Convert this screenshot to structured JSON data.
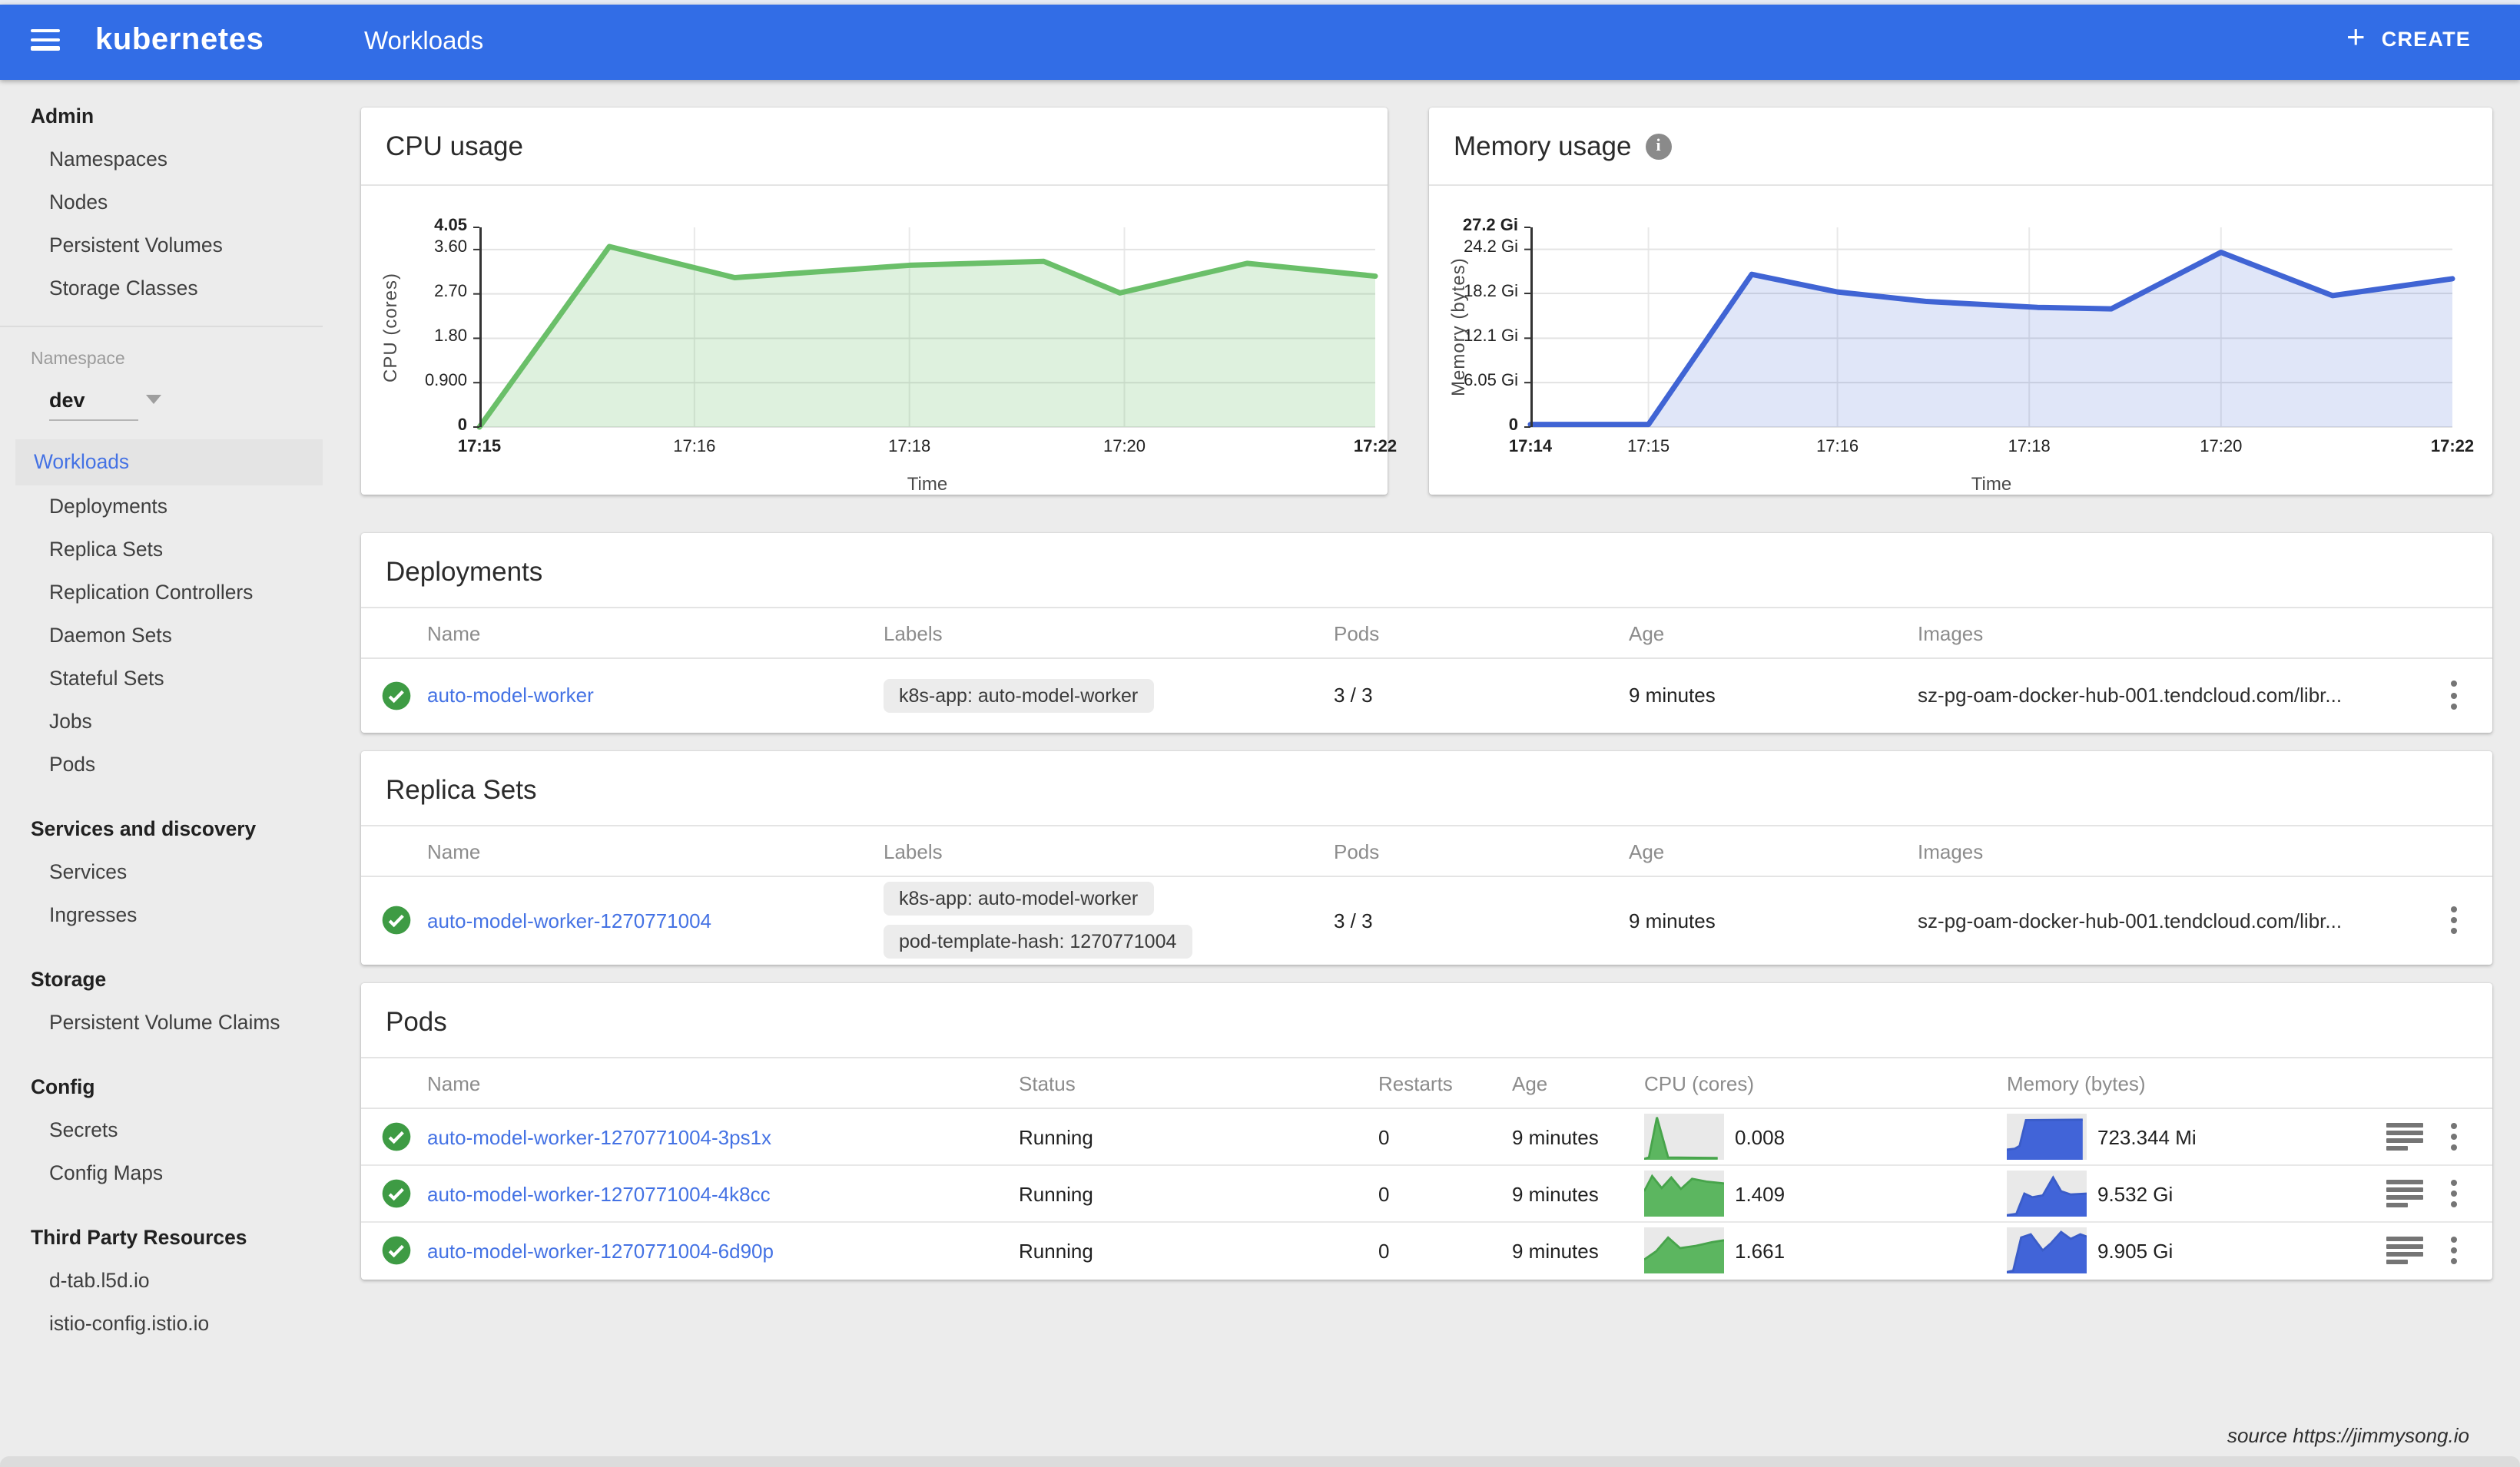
{
  "header": {
    "app_title": "kubernetes",
    "page_title": "Workloads",
    "create_label": "CREATE"
  },
  "colors": {
    "header_blue": "#326de6",
    "link_blue": "#4472e4",
    "green": "#3e9b44",
    "spark_green": "#5cb660",
    "spark_green_line": "#47a44b",
    "spark_blue": "#4164d8",
    "spark_blue_line": "#3a5cc8"
  },
  "sidebar": {
    "admin_header": "Admin",
    "admin_items": [
      "Namespaces",
      "Nodes",
      "Persistent Volumes",
      "Storage Classes"
    ],
    "namespace_label": "Namespace",
    "namespace_value": "dev",
    "workloads_label": "Workloads",
    "workloads_items": [
      "Deployments",
      "Replica Sets",
      "Replication Controllers",
      "Daemon Sets",
      "Stateful Sets",
      "Jobs",
      "Pods"
    ],
    "services_header": "Services and discovery",
    "services_items": [
      "Services",
      "Ingresses"
    ],
    "storage_header": "Storage",
    "storage_items": [
      "Persistent Volume Claims"
    ],
    "config_header": "Config",
    "config_items": [
      "Secrets",
      "Config Maps"
    ],
    "tpr_header": "Third Party Resources",
    "tpr_items": [
      "d-tab.l5d.io",
      "istio-config.istio.io"
    ]
  },
  "chart_data": [
    {
      "id": "cpu",
      "type": "area",
      "title": "CPU usage",
      "ylabel": "CPU (cores)",
      "xlabel": "Time",
      "ymax": 4.05,
      "ylim": [
        0,
        4.05
      ],
      "grid": true,
      "yticks": [
        {
          "v": 0,
          "label": "0",
          "bold": true
        },
        {
          "v": 0.9,
          "label": "0.900"
        },
        {
          "v": 1.8,
          "label": "1.80"
        },
        {
          "v": 2.7,
          "label": "2.70"
        },
        {
          "v": 3.6,
          "label": "3.60"
        },
        {
          "v": 4.05,
          "label": "4.05",
          "bold": true
        }
      ],
      "xticks": [
        {
          "f": 0,
          "label": "17:15",
          "bold": true
        },
        {
          "f": 0.24,
          "label": "17:16"
        },
        {
          "f": 0.48,
          "label": "17:18"
        },
        {
          "f": 0.72,
          "label": "17:20"
        },
        {
          "f": 1,
          "label": "17:22",
          "bold": true
        }
      ],
      "points": [
        [
          0,
          0
        ],
        [
          0.145,
          3.66
        ],
        [
          0.285,
          3.03
        ],
        [
          0.48,
          3.28
        ],
        [
          0.63,
          3.36
        ],
        [
          0.715,
          2.72
        ],
        [
          0.857,
          3.32
        ],
        [
          1,
          3.06
        ]
      ],
      "line_color": "#6abf69",
      "fill_color": "rgba(106,191,105,0.22)"
    },
    {
      "id": "memory",
      "type": "area",
      "title": "Memory usage",
      "ylabel": "Memory (bytes)",
      "xlabel": "Time",
      "ymax": 27.2,
      "ylim": [
        0,
        27.2
      ],
      "grid": true,
      "yticks": [
        {
          "v": 0,
          "label": "0",
          "bold": true
        },
        {
          "v": 6.05,
          "label": "6.05 Gi"
        },
        {
          "v": 12.1,
          "label": "12.1 Gi"
        },
        {
          "v": 18.2,
          "label": "18.2 Gi"
        },
        {
          "v": 24.2,
          "label": "24.2 Gi"
        },
        {
          "v": 27.2,
          "label": "27.2 Gi",
          "bold": true
        }
      ],
      "xticks": [
        {
          "f": 0,
          "label": "17:14",
          "bold": true
        },
        {
          "f": 0.128,
          "label": "17:15"
        },
        {
          "f": 0.333,
          "label": "17:16"
        },
        {
          "f": 0.541,
          "label": "17:18"
        },
        {
          "f": 0.749,
          "label": "17:20"
        },
        {
          "f": 1,
          "label": "17:22",
          "bold": true
        }
      ],
      "points": [
        [
          0,
          0.35
        ],
        [
          0.128,
          0.35
        ],
        [
          0.24,
          20.8
        ],
        [
          0.333,
          18.4
        ],
        [
          0.43,
          17.1
        ],
        [
          0.55,
          16.3
        ],
        [
          0.63,
          16.1
        ],
        [
          0.749,
          23.8
        ],
        [
          0.87,
          17.9
        ],
        [
          1,
          20.2
        ]
      ],
      "line_color": "#4064d4",
      "fill_color": "rgba(64,100,212,0.16)"
    }
  ],
  "tables": {
    "deployments": {
      "title": "Deployments",
      "headers": [
        "Name",
        "Labels",
        "Pods",
        "Age",
        "Images"
      ],
      "rows": [
        {
          "name": "auto-model-worker",
          "labels": [
            "k8s-app: auto-model-worker"
          ],
          "pods": "3 / 3",
          "age": "9 minutes",
          "images": "sz-pg-oam-docker-hub-001.tendcloud.com/libr..."
        }
      ]
    },
    "replica_sets": {
      "title": "Replica Sets",
      "headers": [
        "Name",
        "Labels",
        "Pods",
        "Age",
        "Images"
      ],
      "rows": [
        {
          "name": "auto-model-worker-1270771004",
          "labels": [
            "k8s-app: auto-model-worker",
            "pod-template-hash: 1270771004"
          ],
          "pods": "3 / 3",
          "age": "9 minutes",
          "images": "sz-pg-oam-docker-hub-001.tendcloud.com/libr..."
        }
      ]
    },
    "pods": {
      "title": "Pods",
      "headers": [
        "Name",
        "Status",
        "Restarts",
        "Age",
        "CPU (cores)",
        "Memory (bytes)"
      ],
      "rows": [
        {
          "name": "auto-model-worker-1270771004-3ps1x",
          "status": "Running",
          "restarts": "0",
          "age": "9 minutes",
          "cpu": "0.008",
          "memory": "723.344 Mi",
          "cpu_spark": [
            [
              0,
              0.02
            ],
            [
              0.06,
              0.05
            ],
            [
              0.16,
              0.92
            ],
            [
              0.3,
              0.05
            ],
            [
              0.92,
              0.04
            ]
          ],
          "mem_spark": [
            [
              0,
              0.22
            ],
            [
              0.1,
              0.24
            ],
            [
              0.16,
              0.3
            ],
            [
              0.24,
              0.86
            ],
            [
              0.95,
              0.87
            ]
          ]
        },
        {
          "name": "auto-model-worker-1270771004-4k8cc",
          "status": "Running",
          "restarts": "0",
          "age": "9 minutes",
          "cpu": "1.409",
          "memory": "9.532 Gi",
          "cpu_spark": [
            [
              0,
              0.55
            ],
            [
              0.1,
              0.88
            ],
            [
              0.22,
              0.62
            ],
            [
              0.34,
              0.85
            ],
            [
              0.46,
              0.6
            ],
            [
              0.6,
              0.82
            ],
            [
              0.78,
              0.76
            ],
            [
              1,
              0.72
            ]
          ],
          "mem_spark": [
            [
              0,
              0.03
            ],
            [
              0.12,
              0.06
            ],
            [
              0.22,
              0.5
            ],
            [
              0.32,
              0.42
            ],
            [
              0.45,
              0.46
            ],
            [
              0.58,
              0.85
            ],
            [
              0.68,
              0.55
            ],
            [
              0.8,
              0.48
            ],
            [
              1,
              0.5
            ]
          ]
        },
        {
          "name": "auto-model-worker-1270771004-6d90p",
          "status": "Running",
          "restarts": "0",
          "age": "9 minutes",
          "cpu": "1.661",
          "memory": "9.905 Gi",
          "cpu_spark": [
            [
              0,
              0.3
            ],
            [
              0.15,
              0.48
            ],
            [
              0.3,
              0.78
            ],
            [
              0.45,
              0.55
            ],
            [
              0.65,
              0.6
            ],
            [
              0.85,
              0.68
            ],
            [
              1,
              0.72
            ]
          ],
          "mem_spark": [
            [
              0,
              0.03
            ],
            [
              0.08,
              0.06
            ],
            [
              0.18,
              0.78
            ],
            [
              0.3,
              0.85
            ],
            [
              0.45,
              0.5
            ],
            [
              0.55,
              0.65
            ],
            [
              0.68,
              0.9
            ],
            [
              0.8,
              0.75
            ],
            [
              0.92,
              0.85
            ],
            [
              1,
              0.8
            ]
          ]
        }
      ]
    }
  },
  "footer": {
    "source": "source https://jimmysong.io"
  }
}
